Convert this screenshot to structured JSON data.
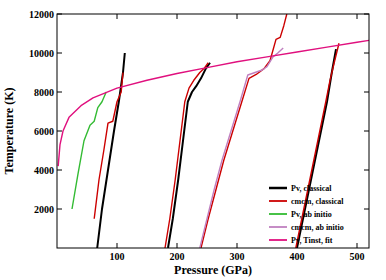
{
  "chart_data": {
    "type": "line",
    "x_label": "Pressure (GPa)",
    "y_label": "Temperature (K)",
    "xlim": [
      0,
      520
    ],
    "ylim": [
      0,
      12000
    ],
    "xticks": [
      100,
      200,
      300,
      400,
      500
    ],
    "yticks": [
      2000,
      4000,
      6000,
      8000,
      10000,
      12000
    ],
    "legend": "lower right",
    "series": [
      {
        "name": "Pv, classical",
        "color": "#000000",
        "x": [
          67,
          75,
          85,
          95,
          103,
          110,
          113,
          null,
          185,
          193,
          202,
          210,
          218,
          225,
          232,
          240,
          248,
          255,
          null,
          400,
          410,
          420,
          430,
          440,
          450,
          458,
          465
        ],
        "values": [
          0,
          2000,
          4000,
          6000,
          7500,
          9000,
          10000,
          null,
          0,
          1500,
          3500,
          5500,
          7500,
          8000,
          8300,
          8700,
          9200,
          9500,
          null,
          0,
          1500,
          3000,
          4500,
          6000,
          7500,
          9000,
          10200
        ]
      },
      {
        "name": "cmcm, classical",
        "color": "#cc0000",
        "x": [
          62,
          70,
          78,
          85,
          93,
          100,
          107,
          110,
          null,
          180,
          188,
          197,
          205,
          213,
          220,
          228,
          238,
          245,
          252,
          null,
          240,
          252,
          265,
          278,
          293,
          308,
          320,
          332,
          345,
          355,
          365,
          372,
          378,
          383,
          null,
          398,
          408,
          418,
          428,
          438,
          448,
          455,
          462,
          470
        ],
        "values": [
          1500,
          3500,
          5000,
          6400,
          6500,
          7500,
          8000,
          9000,
          null,
          0,
          1500,
          3500,
          5500,
          7500,
          8200,
          8600,
          9000,
          9200,
          9500,
          null,
          0,
          1500,
          3000,
          4500,
          6000,
          7500,
          8700,
          8900,
          9200,
          9600,
          10700,
          10800,
          11400,
          12000,
          null,
          0,
          1500,
          3000,
          4500,
          6000,
          7500,
          8600,
          9500,
          10500
        ]
      },
      {
        "name": "Pv, ab initio",
        "color": "#33bb33",
        "x": [
          25,
          35,
          45,
          55,
          62,
          68,
          75,
          82
        ],
        "values": [
          2000,
          3800,
          5500,
          6300,
          6500,
          7200,
          7500,
          8000
        ]
      },
      {
        "name": "cmcm, ab initio",
        "color": "#c080c0",
        "x": [
          238,
          250,
          262,
          275,
          290,
          305,
          318,
          330,
          342,
          350,
          360,
          368,
          377
        ],
        "values": [
          0,
          1500,
          3000,
          4500,
          6000,
          7500,
          8870,
          9000,
          9130,
          9300,
          9800,
          10000,
          10260
        ]
      },
      {
        "name": "Pv, Tinst, fit",
        "color": "#e0107e",
        "x": [
          2,
          5,
          10,
          20,
          40,
          60,
          100,
          150,
          200,
          250,
          300,
          350,
          400,
          450,
          500,
          520
        ],
        "values": [
          4200,
          5300,
          6000,
          6700,
          7300,
          7700,
          8200,
          8600,
          8950,
          9250,
          9550,
          9800,
          10050,
          10300,
          10550,
          10650
        ]
      }
    ]
  }
}
